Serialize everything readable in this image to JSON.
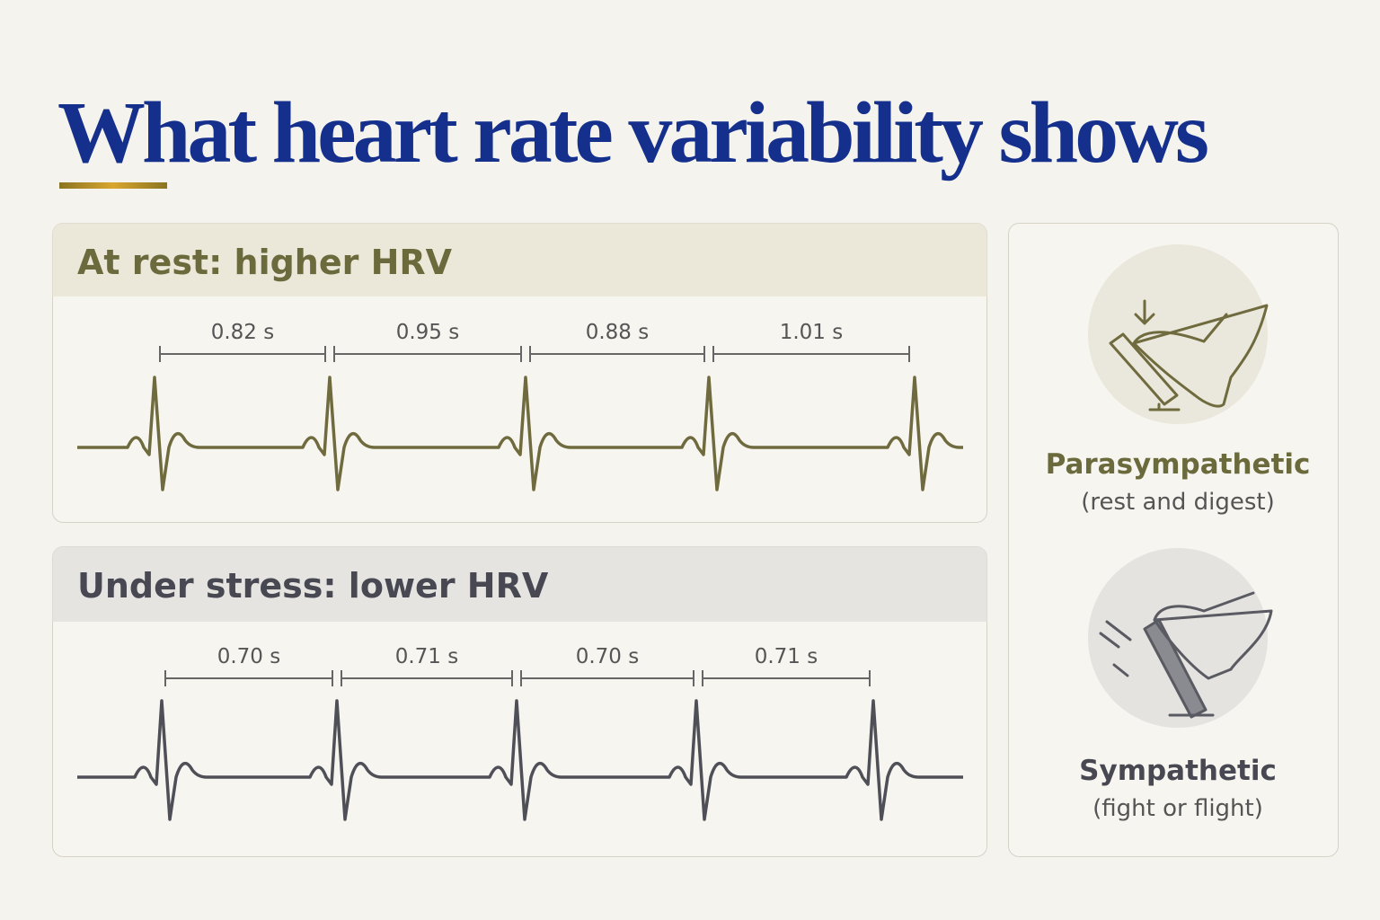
{
  "title": "What heart rate variability shows",
  "panels": [
    {
      "heading": "At rest: higher HRV",
      "intervals": [
        "0.82 s",
        "0.95 s",
        "0.88 s",
        "1.01 s"
      ]
    },
    {
      "heading": "Under stress: lower HRV",
      "intervals": [
        "0.70 s",
        "0.71 s",
        "0.70 s",
        "0.71 s"
      ]
    }
  ],
  "side": [
    {
      "label": "Parasympathetic",
      "caption": "(rest and digest)"
    },
    {
      "label": "Sympathetic",
      "caption": "(fight or flight)"
    }
  ]
}
